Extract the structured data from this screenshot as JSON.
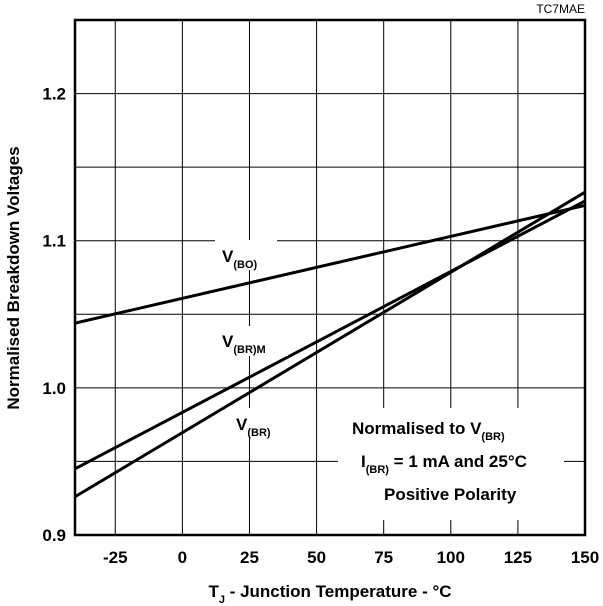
{
  "chart_data": {
    "type": "line",
    "chart_code": "TC7MAE",
    "xlabel": {
      "main": "T",
      "sub": "J",
      "rest": " - Junction Temperature - °C"
    },
    "ylabel": "Normalised Breakdown Voltages",
    "xlim": [
      -40,
      150
    ],
    "ylim": [
      0.9,
      1.25
    ],
    "x_ticks": [
      -25,
      0,
      25,
      50,
      75,
      100,
      125,
      150
    ],
    "x_tick_labels": [
      "-25",
      "0",
      "25",
      "50",
      "75",
      "100",
      "125",
      "150"
    ],
    "y_ticks": [
      0.9,
      1.0,
      1.1,
      1.2
    ],
    "y_tick_labels": [
      "0.9",
      "1.0",
      "1.1",
      "1.2"
    ],
    "grid": true,
    "series": [
      {
        "name": {
          "main": "V",
          "sub": "(BO)"
        },
        "x": [
          -40,
          150
        ],
        "y": [
          1.044,
          1.124
        ]
      },
      {
        "name": {
          "main": "V",
          "sub": "(BR)M"
        },
        "x": [
          -40,
          150
        ],
        "y": [
          0.945,
          1.127
        ]
      },
      {
        "name": {
          "main": "V",
          "sub": "(BR)"
        },
        "x": [
          -40,
          150
        ],
        "y": [
          0.926,
          1.133
        ]
      }
    ],
    "annotation": {
      "line1": {
        "text": "Normalised to V",
        "sub": "(BR)"
      },
      "line2": {
        "main": "I",
        "sub": "(BR)",
        "rest": " = 1 mA and 25°C"
      },
      "line3": "Positive Polarity"
    }
  }
}
